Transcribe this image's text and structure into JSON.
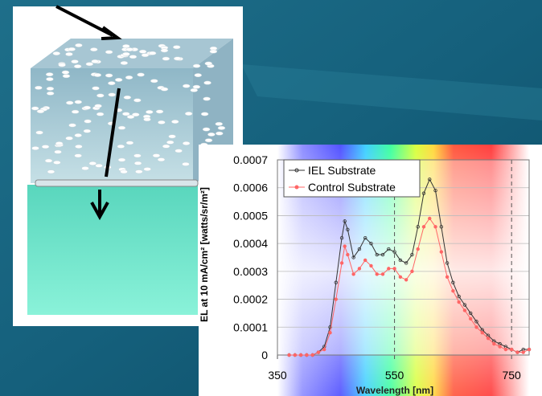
{
  "chart_data": {
    "type": "line",
    "xlabel": "Wavelength [nm]",
    "ylabel": "EL at 10 mA/cm² [watts/sr/m²]",
    "x": [
      370,
      380,
      390,
      400,
      410,
      420,
      430,
      440,
      450,
      460,
      465,
      470,
      480,
      490,
      500,
      510,
      520,
      530,
      540,
      550,
      560,
      570,
      580,
      590,
      600,
      610,
      620,
      630,
      640,
      650,
      660,
      670,
      680,
      690,
      700,
      710,
      720,
      730,
      740,
      750,
      760,
      770,
      780
    ],
    "series": [
      {
        "name": "IEL Substrate",
        "color": "#333333",
        "values": [
          0,
          0,
          0,
          0,
          0,
          1e-05,
          3e-05,
          0.0001,
          0.00026,
          0.00042,
          0.00048,
          0.00045,
          0.00035,
          0.00038,
          0.00042,
          0.0004,
          0.00036,
          0.00036,
          0.00038,
          0.00037,
          0.00034,
          0.00033,
          0.00036,
          0.00046,
          0.00058,
          0.00063,
          0.00059,
          0.00046,
          0.00033,
          0.00026,
          0.00021,
          0.00018,
          0.00015,
          0.00012,
          9e-05,
          7e-05,
          5e-05,
          4e-05,
          3e-05,
          2e-05,
          1e-05,
          2e-05,
          2e-05
        ]
      },
      {
        "name": "Control Substrate",
        "color": "#ff6666",
        "values": [
          0,
          0,
          0,
          0,
          0,
          1e-05,
          2e-05,
          8e-05,
          0.0002,
          0.00033,
          0.00039,
          0.00036,
          0.00029,
          0.00031,
          0.00034,
          0.00032,
          0.00029,
          0.00029,
          0.00031,
          0.00031,
          0.00028,
          0.00027,
          0.0003,
          0.00038,
          0.00046,
          0.00049,
          0.00046,
          0.00037,
          0.00028,
          0.00023,
          0.00019,
          0.00016,
          0.00013,
          0.0001,
          8e-05,
          6e-05,
          4e-05,
          3e-05,
          2e-05,
          2e-05,
          1e-05,
          1e-05,
          2e-05
        ]
      }
    ],
    "xlim": [
      350,
      780
    ],
    "xticks": [
      350,
      550,
      750
    ],
    "ylim": [
      0,
      0.0007
    ],
    "yticks": [
      0,
      0.0001,
      0.0002,
      0.0003,
      0.0004,
      0.0005,
      0.0006,
      0.0007
    ],
    "dashed_x_lines": [
      550,
      750
    ],
    "grid": true,
    "legend": "upper left"
  }
}
